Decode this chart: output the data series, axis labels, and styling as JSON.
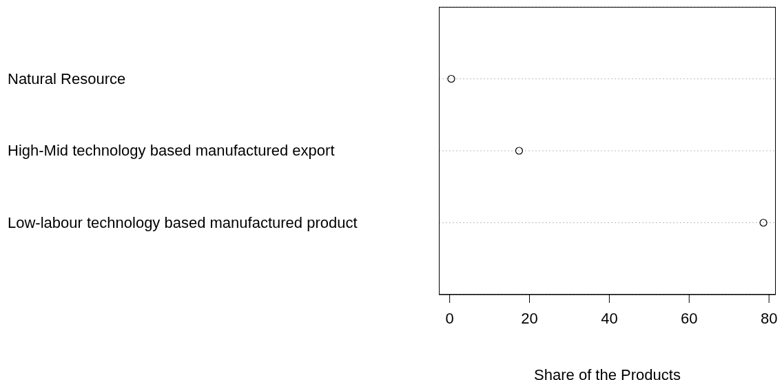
{
  "chart_data": {
    "type": "scatter",
    "xlabel": "Share of the Products",
    "categories": [
      "Natural Resource",
      "High-Mid technology based manufactured export",
      "Low-labour technology based manufactured product"
    ],
    "values": [
      0.4,
      17.4,
      78.6
    ],
    "orientation": "horizontal",
    "color": "#000000",
    "marker": "circle",
    "xlim": [
      -2.7,
      81.7
    ],
    "xticks": [
      0,
      20,
      40,
      60,
      80
    ],
    "grid": "y",
    "line_style": "dotted"
  }
}
